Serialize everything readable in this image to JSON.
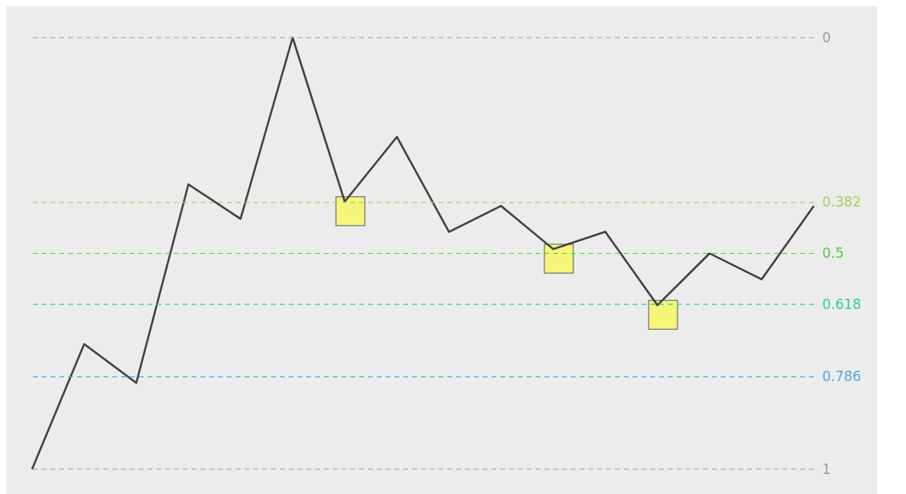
{
  "chart_data": {
    "type": "line",
    "ylim": [
      1,
      0
    ],
    "yticks": [
      0,
      0.382,
      0.5,
      0.618,
      0.786,
      1
    ],
    "tick_labels": "y",
    "grid": false,
    "line_style": "solid",
    "marker": "none",
    "categories": [
      null,
      null,
      null,
      null,
      null,
      null,
      null,
      null,
      null,
      null,
      null,
      null,
      null,
      null,
      null,
      null
    ],
    "series": [
      {
        "color": "#404040",
        "values": [
          1,
          0.71,
          0.8,
          0.34,
          0.42,
          0,
          0.38,
          0.23,
          0.45,
          0.39,
          0.49,
          0.45,
          0.62,
          0.5,
          0.56,
          0.39
        ]
      }
    ],
    "ref_lines": [
      {
        "axis": "y",
        "value": 0,
        "color": "#999999",
        "line_style": "dashed"
      },
      {
        "axis": "y",
        "value": 0.382,
        "color": "#a8d060",
        "line_style": "dashed"
      },
      {
        "axis": "y",
        "value": 0.5,
        "color": "#55cc44",
        "line_style": "dashed"
      },
      {
        "axis": "y",
        "value": 0.618,
        "color": "#33cc99",
        "line_style": "dashed"
      },
      {
        "axis": "y",
        "value": 0.786,
        "color": "#55a8d8",
        "line_style": "dashed"
      },
      {
        "axis": "y",
        "value": 1,
        "color": "#999999",
        "line_style": "dashed"
      }
    ]
  }
}
